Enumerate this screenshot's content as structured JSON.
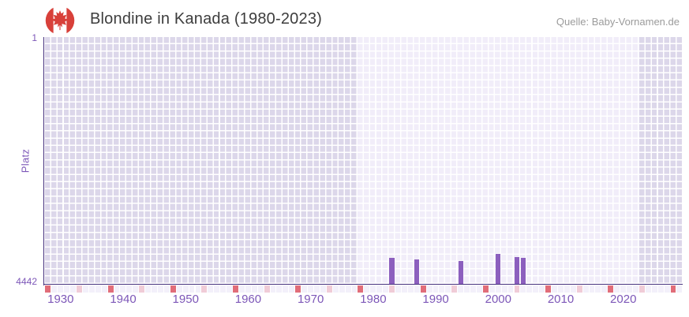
{
  "header": {
    "title": "Blondine in Kanada (1980-2023)",
    "source": "Quelle: Baby-Vornamen.de",
    "flag_icon": "canada-flag-icon"
  },
  "chart_data": {
    "type": "bar",
    "title": "Blondine in Kanada (1980-2023)",
    "xlabel": "",
    "ylabel": "Platz",
    "y_axis": {
      "top_label": "1",
      "bottom_label": "4442",
      "min": 1,
      "max": 4442,
      "inverted": true
    },
    "x_domain": [
      1928,
      2029
    ],
    "x_ticks": [
      1930,
      1940,
      1950,
      1960,
      1970,
      1980,
      1990,
      2000,
      2010,
      2020
    ],
    "highlight_year_range": [
      1978,
      2022
    ],
    "grid": true,
    "legend": null,
    "points": [
      {
        "year": 1983,
        "rank": 3970
      },
      {
        "year": 1987,
        "rank": 4000
      },
      {
        "year": 1994,
        "rank": 4030
      },
      {
        "year": 2000,
        "rank": 3900
      },
      {
        "year": 2003,
        "rank": 3955
      },
      {
        "year": 2004,
        "rank": 3970
      }
    ],
    "bottom_marker_years": {
      "red": [
        1928,
        1938,
        1948,
        1958,
        1968,
        1978,
        1988,
        1998,
        2008,
        2018,
        2028
      ],
      "pink": [
        1933,
        1943,
        1953,
        1963,
        1973,
        1983,
        1993,
        2003,
        2013,
        2023
      ]
    },
    "colors": {
      "bar": "#8c5fbe",
      "axis": "#46317e",
      "tick_text": "#7d57b8",
      "title_text": "#3d3d3d",
      "source_text": "#9b9b9b",
      "cell_light": "#f1edf9",
      "cell_dark": "#dcd7ea",
      "grid_line": "#ffffff",
      "marker_red": "#e16d79",
      "marker_pink": "#f0ccd7",
      "marker_default": "#f3f0fa",
      "flag_red": "#d8403a"
    }
  }
}
